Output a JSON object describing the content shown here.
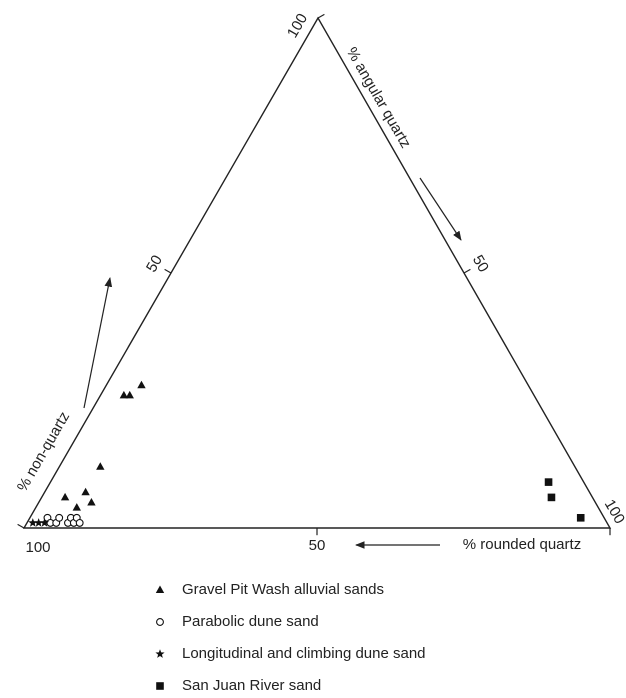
{
  "chart_data": {
    "type": "ternary",
    "axes": [
      {
        "label": "% angular quartz",
        "ticks": [
          50,
          100
        ]
      },
      {
        "label": "% rounded quartz",
        "ticks": [
          50,
          100
        ]
      },
      {
        "label": "% non-quartz",
        "ticks": [
          50,
          100
        ]
      }
    ],
    "series": [
      {
        "name": "Gravel Pit Wash alluvial sands",
        "marker": "triangle",
        "color": "#111111",
        "values": [
          [
            6,
            4,
            90
          ],
          [
            4,
            7,
            89
          ],
          [
            5,
            9,
            86
          ],
          [
            7,
            7,
            86
          ],
          [
            12,
            7,
            81
          ],
          [
            26,
            4,
            70
          ],
          [
            26,
            5,
            69
          ],
          [
            28,
            6,
            66
          ]
        ]
      },
      {
        "name": "Parabolic dune sand",
        "marker": "circle",
        "color": "#111111",
        "values": [
          [
            2,
            3,
            95
          ],
          [
            1,
            4,
            95
          ],
          [
            1,
            5,
            94
          ],
          [
            2,
            5,
            93
          ],
          [
            1,
            7,
            92
          ],
          [
            2,
            7,
            91
          ],
          [
            1,
            8,
            91
          ],
          [
            2,
            8,
            90
          ],
          [
            1,
            9,
            90
          ]
        ]
      },
      {
        "name": "Longitudinal and climbing dune sand",
        "marker": "star",
        "color": "#111111",
        "values": [
          [
            1,
            1,
            98
          ],
          [
            1,
            2,
            97
          ],
          [
            1,
            3,
            96
          ]
        ]
      },
      {
        "name": "San Juan River sand",
        "marker": "square",
        "color": "#111111",
        "values": [
          [
            9,
            85,
            6
          ],
          [
            6,
            87,
            7
          ],
          [
            2,
            94,
            4
          ]
        ]
      }
    ]
  }
}
